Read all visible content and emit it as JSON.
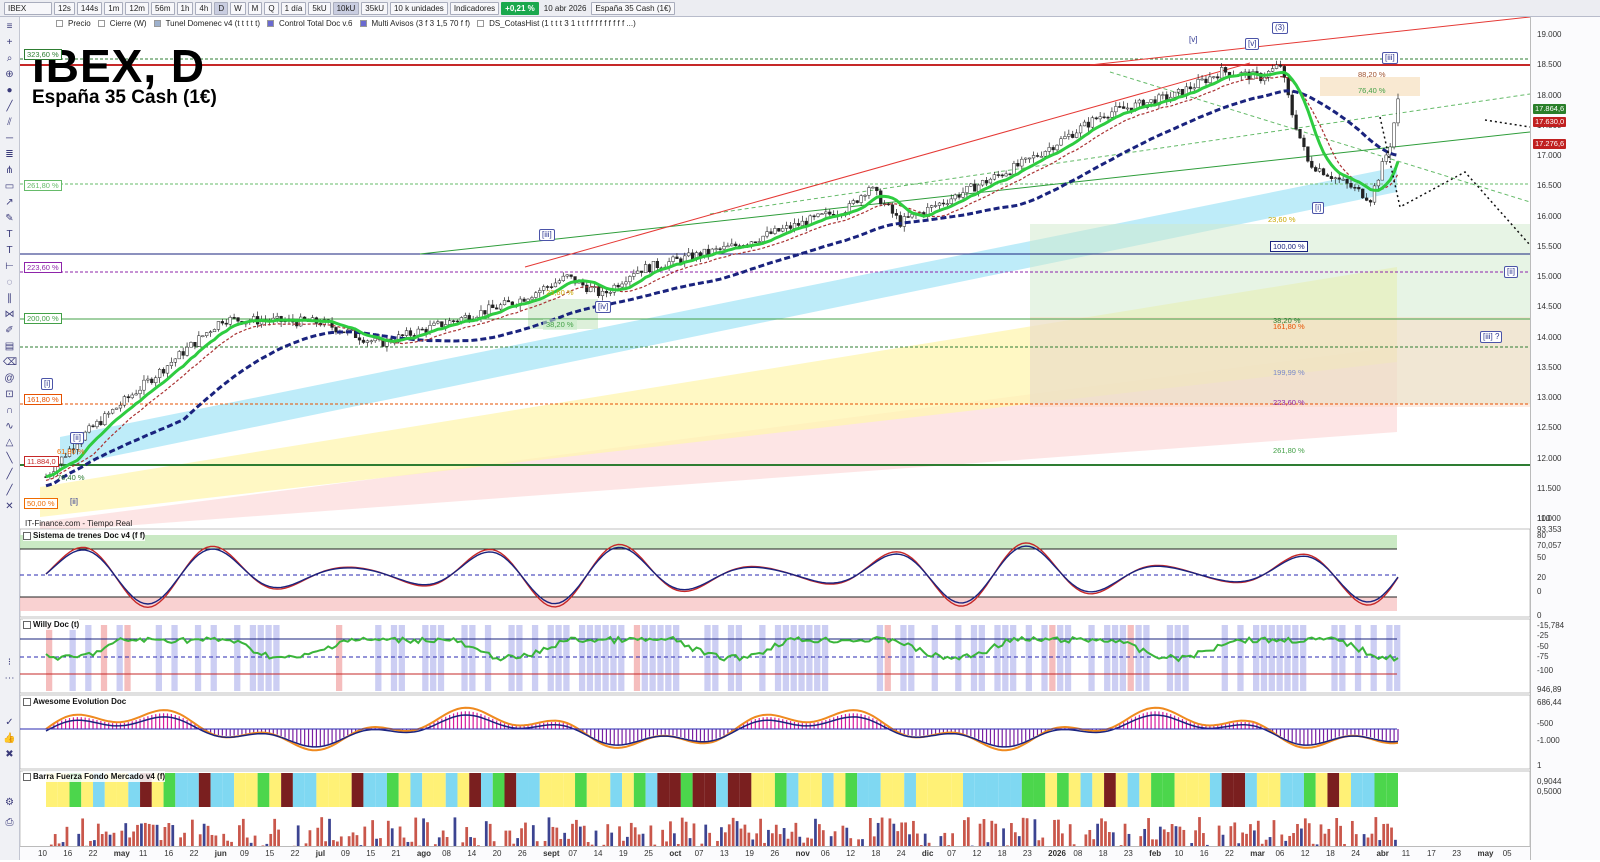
{
  "toolbar": {
    "symbol": "IBEX",
    "timeframes": [
      "12s",
      "144s",
      "1m",
      "12m",
      "56m",
      "1h",
      "4h",
      "D",
      "W",
      "M",
      "Q"
    ],
    "period": "1 día",
    "tick_buttons": [
      "5kU",
      "10kU",
      "35kU"
    ],
    "units": "10 k unidades",
    "indicators_label": "Indicadores",
    "change": "+0,21 %",
    "date": "10 abr 2026",
    "instrument": "España 35 Cash (1€)",
    "overlays": [
      "Precio",
      "Cierre (W)",
      "Tunel Domenec v4 (t t t t t)",
      "Control Total Doc v.6",
      "Multi Avisos (3 f 3 1,5 70 f f)",
      "DS_CotasHist (1 t t t 3 1 t t f f f f f f f f f ...)"
    ]
  },
  "chart": {
    "title": "IBEX, D",
    "subtitle": "España 35 Cash (1€)",
    "credit": "IT-Finance.com - Tiempo Real",
    "waves": [
      "[i]",
      "[ii]",
      "[iii]",
      "[iv]",
      "[v]",
      "[i]",
      "[ii]",
      "[iii]",
      "[iv]",
      "[v]",
      "(3)",
      "[i]",
      "[ii]",
      "[iii] ?"
    ],
    "fib_tags": [
      "323,60 %",
      "261,80 %",
      "223,60 %",
      "200,00 %",
      "161,80 %",
      "11.884,0",
      "100,00 %",
      "76,40 %",
      "50,00 %",
      "61,80 %",
      "23,60 %",
      "38,20 %",
      "88,20 %",
      "76,40 %",
      "23,60 %",
      "100,00 %",
      "38,20 %",
      "161,80 %",
      "199,99 %",
      "223,60 %",
      "261,80 %"
    ]
  },
  "price_axis": {
    "ticks": [
      "19.000",
      "18.500",
      "18.000",
      "17.500",
      "17.000",
      "16.500",
      "16.000",
      "15.500",
      "15.000",
      "14.500",
      "14.000",
      "13.500",
      "13.000",
      "12.500",
      "12.000",
      "11.500",
      "11.000"
    ],
    "badges": [
      {
        "text": "17.864,6",
        "color": "#2a7f2a"
      },
      {
        "text": "17.630,0",
        "color": "#c02020"
      },
      {
        "text": "17.276,6",
        "color": "#c02020"
      }
    ]
  },
  "panels": [
    {
      "label": "Sistema de trenes Doc v4 (f f)",
      "axis": [
        "100",
        "93,353",
        "80",
        "70,057",
        "50",
        "20",
        "0"
      ]
    },
    {
      "label": "Willy Doc (t)",
      "axis": [
        "0",
        "-15,784",
        "-25",
        "-50",
        "-75",
        "-100"
      ]
    },
    {
      "label": "Awesome Evolution Doc",
      "axis": [
        "946,89",
        "686,44",
        "-500",
        "-1.000"
      ]
    },
    {
      "label": "Barra Fuerza Fondo Mercado v4 (f)",
      "axis": [
        "1",
        "0,9044",
        "0,5000"
      ]
    }
  ],
  "dates": [
    "10",
    "16",
    "22",
    "may",
    "11",
    "16",
    "22",
    "jun",
    "09",
    "15",
    "22",
    "jul",
    "09",
    "15",
    "21",
    "ago",
    "08",
    "14",
    "20",
    "26",
    "sept",
    "07",
    "14",
    "19",
    "25",
    "oct",
    "07",
    "13",
    "19",
    "26",
    "nov",
    "06",
    "12",
    "18",
    "24",
    "dic",
    "07",
    "12",
    "18",
    "23",
    "2026",
    "08",
    "18",
    "23",
    "feb",
    "10",
    "16",
    "22",
    "mar",
    "06",
    "12",
    "18",
    "24",
    "abr",
    "11",
    "17",
    "23",
    "may",
    "05"
  ],
  "colors": {
    "up": "#1f8a3c",
    "down": "#c0392b",
    "ma_green": "#2ecc40",
    "ma_blue": "#1a237e",
    "ma_red": "#c62828"
  }
}
